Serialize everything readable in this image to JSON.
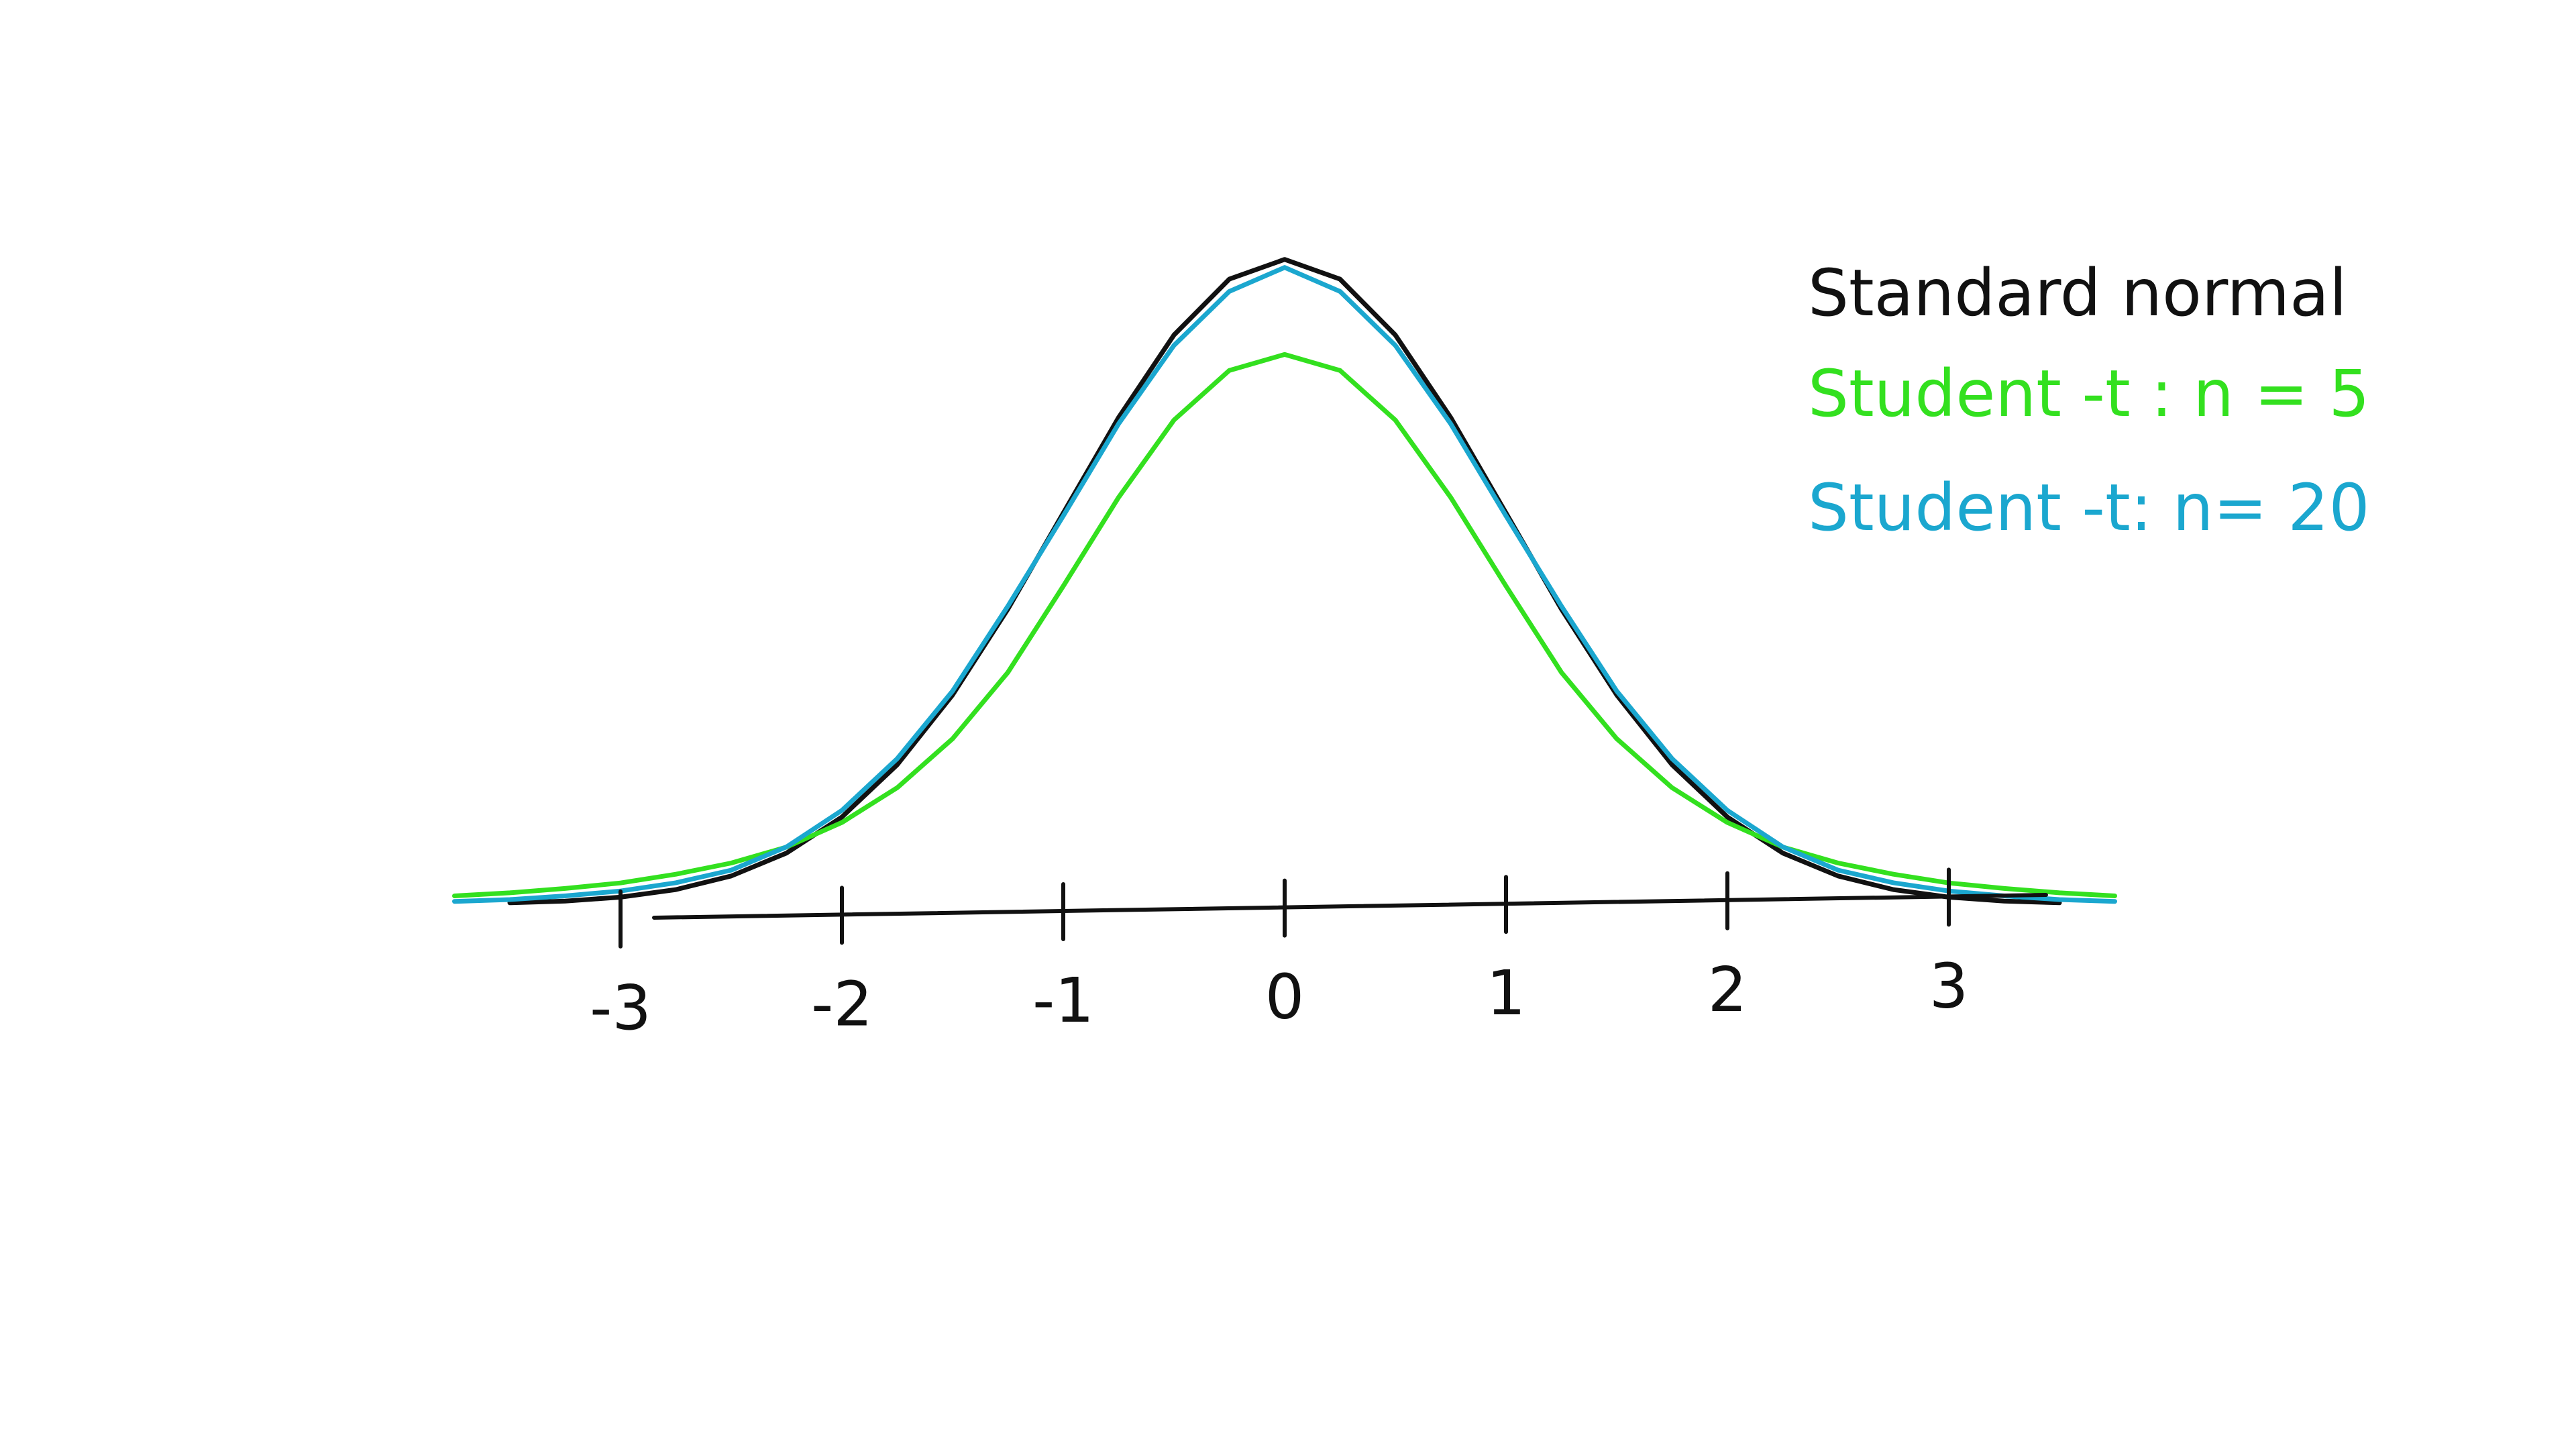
{
  "chart_data": {
    "type": "line",
    "title": "",
    "xlabel": "",
    "ylabel": "",
    "xlim": [
      -3.5,
      3.5
    ],
    "ylim": [
      0,
      0.42
    ],
    "x_ticks": [
      -3,
      -2,
      -1,
      0,
      1,
      2,
      3
    ],
    "x_tick_labels": [
      "-3",
      "-2",
      "-1",
      "0",
      "1",
      "2",
      "3"
    ],
    "grid": false,
    "legend_position": "top-right",
    "series": [
      {
        "name": "Standard normal",
        "color": "#111111",
        "x": [
          -3.5,
          -3.25,
          -3.0,
          -2.75,
          -2.5,
          -2.25,
          -2.0,
          -1.75,
          -1.5,
          -1.25,
          -1.0,
          -0.75,
          -0.5,
          -0.25,
          0.0,
          0.25,
          0.5,
          0.75,
          1.0,
          1.25,
          1.5,
          1.75,
          2.0,
          2.25,
          2.5,
          2.75,
          3.0,
          3.25,
          3.5
        ],
        "y": [
          0.0009,
          0.002,
          0.0044,
          0.0091,
          0.0175,
          0.0317,
          0.054,
          0.0863,
          0.1295,
          0.1826,
          0.242,
          0.3011,
          0.3521,
          0.3867,
          0.3989,
          0.3867,
          0.3521,
          0.3011,
          0.242,
          0.1826,
          0.1295,
          0.0863,
          0.054,
          0.0317,
          0.0175,
          0.0091,
          0.0044,
          0.002,
          0.0009
        ]
      },
      {
        "name": "Student -t : n = 5",
        "color": "#33e01f",
        "x": [
          -3.75,
          -3.5,
          -3.25,
          -3.0,
          -2.75,
          -2.5,
          -2.25,
          -2.0,
          -1.75,
          -1.5,
          -1.25,
          -1.0,
          -0.75,
          -0.5,
          -0.25,
          0.0,
          0.25,
          0.5,
          0.75,
          1.0,
          1.25,
          1.5,
          1.75,
          2.0,
          2.25,
          2.5,
          2.75,
          3.0,
          3.25,
          3.5,
          3.75
        ],
        "y": [
          0.0052,
          0.0071,
          0.0098,
          0.0132,
          0.0186,
          0.0255,
          0.0354,
          0.0506,
          0.0721,
          0.1024,
          0.1435,
          0.1968,
          0.2517,
          0.2995,
          0.3302,
          0.3401,
          0.3302,
          0.2995,
          0.2517,
          0.1968,
          0.1435,
          0.1024,
          0.0721,
          0.0506,
          0.0354,
          0.0255,
          0.0186,
          0.0132,
          0.0098,
          0.0071,
          0.0052
        ]
      },
      {
        "name": "Student -t: n= 20",
        "color": "#1ba7cf",
        "x": [
          -3.75,
          -3.5,
          -3.25,
          -3.0,
          -2.75,
          -2.5,
          -2.25,
          -2.0,
          -1.75,
          -1.5,
          -1.25,
          -1.0,
          -0.75,
          -0.5,
          -0.25,
          0.0,
          0.25,
          0.5,
          0.75,
          1.0,
          1.25,
          1.5,
          1.75,
          2.0,
          2.25,
          2.5,
          2.75,
          3.0,
          3.25,
          3.5,
          3.75
        ],
        "y": [
          0.0018,
          0.0029,
          0.0052,
          0.0082,
          0.0133,
          0.0211,
          0.0355,
          0.0581,
          0.0901,
          0.1319,
          0.1845,
          0.2402,
          0.2972,
          0.3457,
          0.3791,
          0.3939,
          0.3791,
          0.3457,
          0.2972,
          0.2402,
          0.1845,
          0.1319,
          0.0901,
          0.0581,
          0.0355,
          0.0211,
          0.0133,
          0.0082,
          0.0052,
          0.0029,
          0.0018
        ]
      }
    ]
  }
}
